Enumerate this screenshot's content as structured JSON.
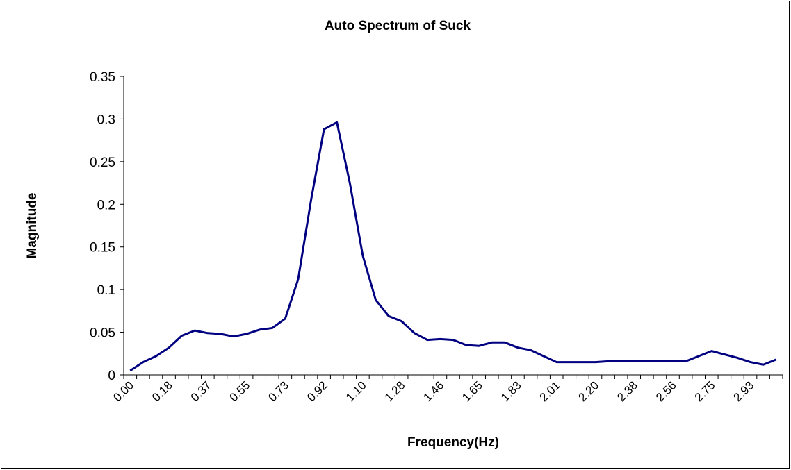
{
  "chart_data": {
    "type": "line",
    "title": "Auto Spectrum of Suck",
    "x_label": "Frequency(Hz)",
    "y_label": "Magnitude",
    "categories": [
      "0.00",
      null,
      null,
      "0.18",
      null,
      null,
      "0.37",
      null,
      null,
      "0.55",
      null,
      null,
      "0.73",
      null,
      null,
      "0.92",
      null,
      null,
      "1.10",
      null,
      null,
      "1.28",
      null,
      null,
      "1.46",
      null,
      null,
      "1.65",
      null,
      null,
      "1.83",
      null,
      null,
      "2.01",
      null,
      null,
      "2.20",
      null,
      null,
      "2.38",
      null,
      null,
      "2.56",
      null,
      null,
      "2.75",
      null,
      null,
      "2.93",
      null,
      null
    ],
    "series": [
      {
        "name": "Magnitude",
        "color": "#000080",
        "values": [
          0.005,
          0.015,
          0.022,
          0.032,
          0.046,
          0.052,
          0.049,
          0.048,
          0.045,
          0.048,
          0.053,
          0.055,
          0.066,
          0.112,
          0.205,
          0.288,
          0.296,
          0.225,
          0.14,
          0.088,
          0.069,
          0.063,
          0.049,
          0.041,
          0.042,
          0.041,
          0.035,
          0.034,
          0.038,
          0.038,
          0.032,
          0.029,
          0.022,
          0.015,
          0.015,
          0.015,
          0.015,
          0.016,
          0.016,
          0.016,
          0.016,
          0.016,
          0.016,
          0.016,
          0.022,
          0.028,
          0.024,
          0.02,
          0.015,
          0.012,
          0.018
        ]
      }
    ],
    "ylim": [
      0,
      0.35
    ],
    "yticks": [
      0,
      0.05,
      0.1,
      0.15,
      0.2,
      0.25,
      0.3,
      0.35
    ],
    "grid": false
  }
}
